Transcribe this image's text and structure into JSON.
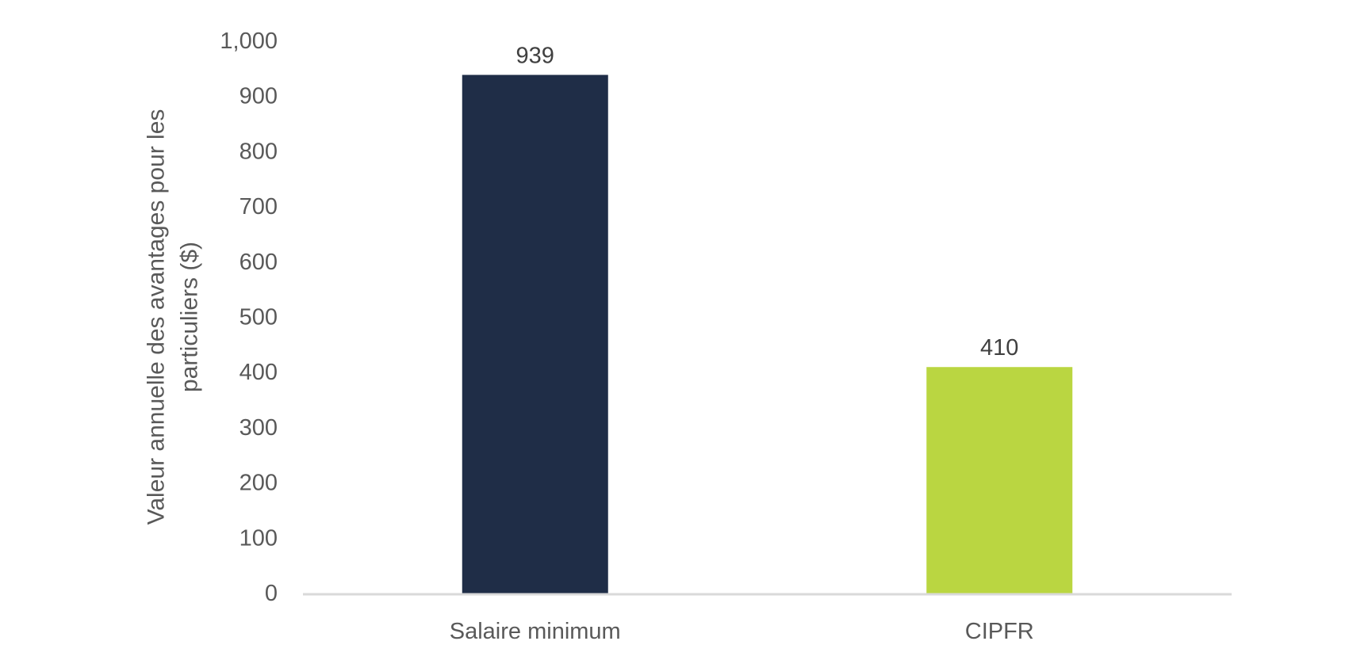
{
  "chart_data": {
    "type": "bar",
    "categories": [
      "Salaire minimum",
      "CIPFR"
    ],
    "values": [
      939,
      410
    ],
    "data_labels": [
      "939",
      "410"
    ],
    "bar_colors": [
      "#1f2d47",
      "#bad641"
    ],
    "title": "",
    "xlabel": "",
    "ylabel_lines": [
      "Valeur annuelle des avantages pour les",
      "particuliers ($)"
    ],
    "ylim": [
      0,
      1000
    ],
    "y_ticks": [
      0,
      100,
      200,
      300,
      400,
      500,
      600,
      700,
      800,
      900,
      1000
    ],
    "y_tick_labels": [
      "0",
      "100",
      "200",
      "300",
      "400",
      "500",
      "600",
      "700",
      "800",
      "900",
      "1,000"
    ],
    "grid": false,
    "legend": "none",
    "axis_color": "#d9d9d9"
  }
}
